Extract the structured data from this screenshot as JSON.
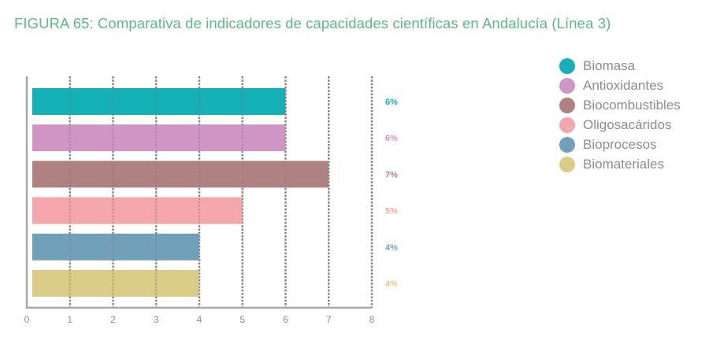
{
  "title": "FIGURA 65: Comparativa de indicadores de capacidades científicas en Andalucía (Línea 3)",
  "chart_data": {
    "type": "bar",
    "orientation": "horizontal",
    "title": "FIGURA 65: Comparativa de indicadores de capacidades científicas en Andalucía (Línea 3)",
    "xlabel": "",
    "ylabel": "",
    "xlim": [
      0,
      8
    ],
    "x_ticks": [
      "0",
      "1",
      "2",
      "3",
      "4",
      "5",
      "6",
      "7",
      "8"
    ],
    "grid": true,
    "legend_position": "top-right",
    "categories": [
      "Biomasa",
      "Antioxidantes",
      "Biocombustibles",
      "Oligosacáridos",
      "Bioprocesos",
      "Biomateriales"
    ],
    "values": [
      6,
      6,
      7,
      5,
      4,
      4
    ],
    "value_labels": [
      "6%",
      "6%",
      "7%",
      "5%",
      "4%",
      "4%"
    ],
    "colors": [
      "#14b0b5",
      "#d095c5",
      "#b08181",
      "#f3a6ab",
      "#71a1b9",
      "#d9cc87"
    ]
  },
  "colors": {
    "title": "#5fb884",
    "axis": "#a8a8a8",
    "grid": "#8c8c8c",
    "tick_label": "#8d8d8d",
    "legend_label": "#8d8d8d"
  }
}
